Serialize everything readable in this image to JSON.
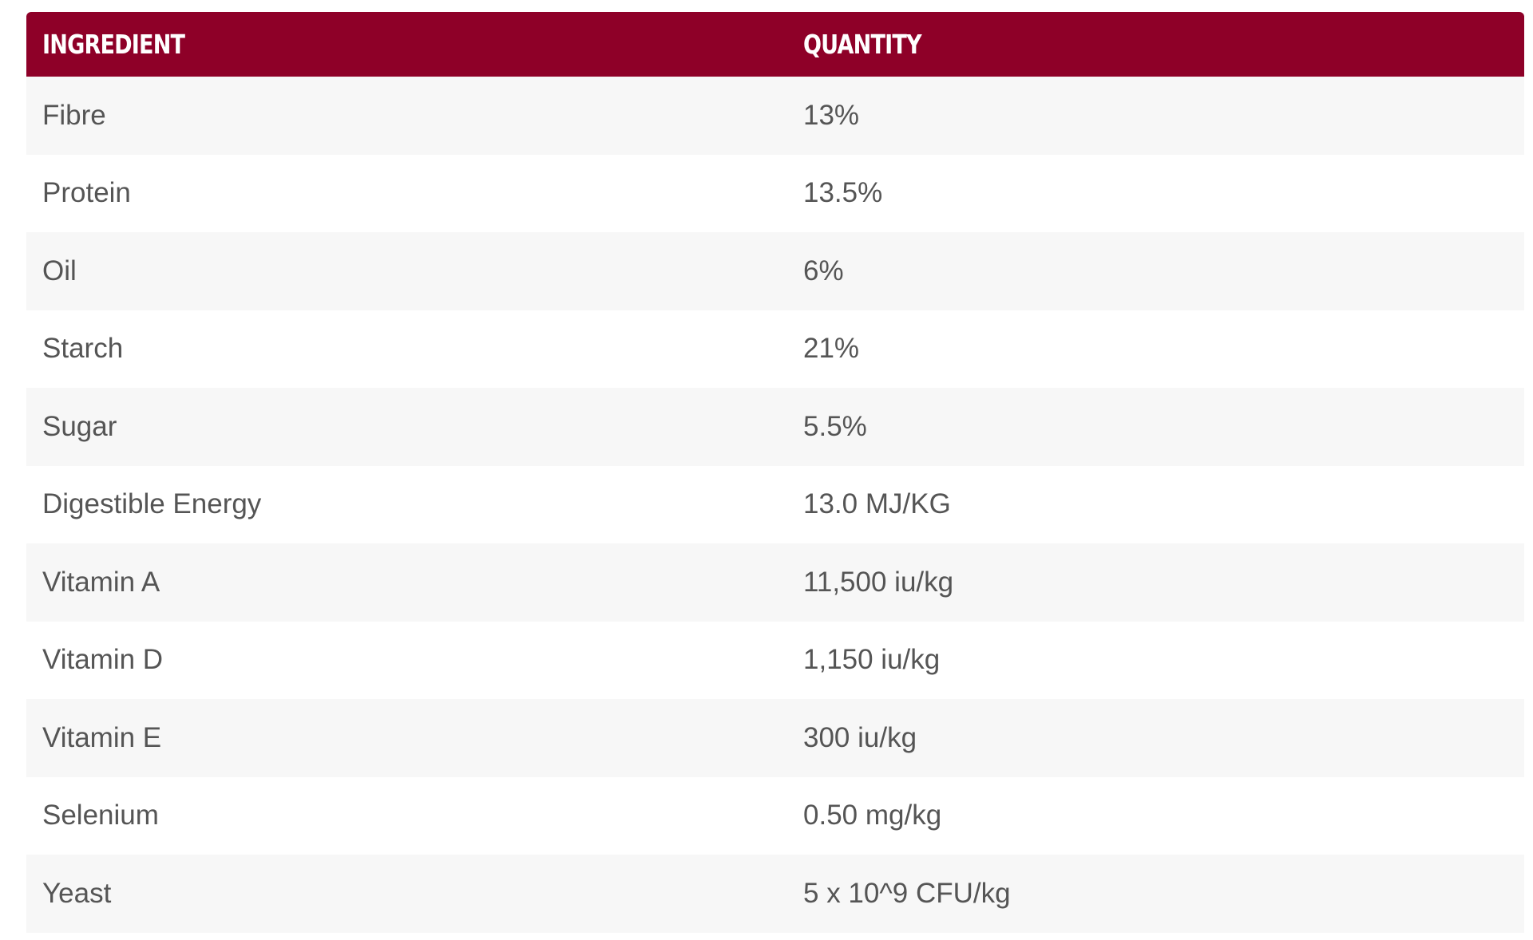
{
  "table": {
    "headers": {
      "ingredient": "INGREDIENT",
      "quantity": "QUANTITY"
    },
    "rows": [
      {
        "ingredient": "Fibre",
        "quantity": "13%"
      },
      {
        "ingredient": "Protein",
        "quantity": "13.5%"
      },
      {
        "ingredient": "Oil",
        "quantity": "6%"
      },
      {
        "ingredient": "Starch",
        "quantity": "21%"
      },
      {
        "ingredient": "Sugar",
        "quantity": "5.5%"
      },
      {
        "ingredient": "Digestible Energy",
        "quantity": "13.0 MJ/KG"
      },
      {
        "ingredient": "Vitamin A",
        "quantity": "11,500 iu/kg"
      },
      {
        "ingredient": "Vitamin D",
        "quantity": "1,150 iu/kg"
      },
      {
        "ingredient": "Vitamin E",
        "quantity": "300 iu/kg"
      },
      {
        "ingredient": "Selenium",
        "quantity": "0.50 mg/kg"
      },
      {
        "ingredient": "Yeast",
        "quantity": "5 x 10^9 CFU/kg"
      }
    ]
  },
  "colors": {
    "header_bg": "#8e0028",
    "header_text": "#ffffff",
    "row_alt_bg": "#f7f7f7",
    "body_text": "#555555"
  }
}
